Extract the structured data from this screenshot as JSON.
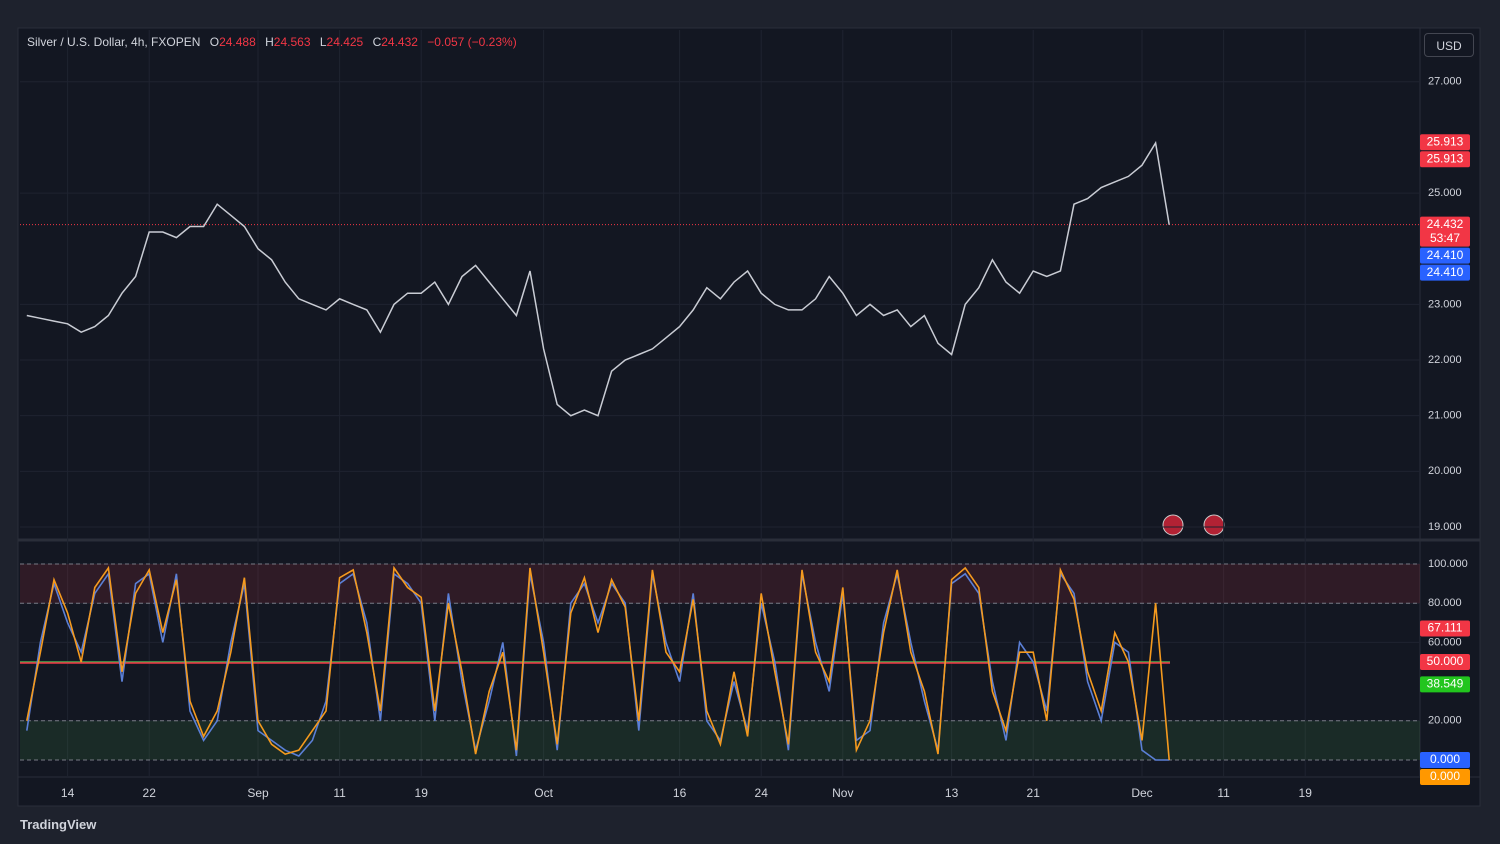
{
  "header": {
    "title": "Silver / U.S. Dollar, 4h, FXOPEN",
    "ohlc": [
      {
        "label": "O",
        "value": 24.488
      },
      {
        "label": "H",
        "value": 24.563
      },
      {
        "label": "L",
        "value": 24.425
      },
      {
        "label": "C",
        "value": 24.432
      }
    ],
    "change": "−0.057 (−0.23%)"
  },
  "currency": "USD",
  "brand": "TradingView",
  "chart_data": [
    {
      "type": "line",
      "categories": [
        null,
        null,
        null,
        "14",
        null,
        null,
        null,
        null,
        null,
        "22",
        null,
        null,
        null,
        null,
        null,
        null,
        null,
        "Sep",
        null,
        null,
        null,
        null,
        null,
        "11",
        null,
        null,
        null,
        null,
        null,
        "19",
        null,
        null,
        null,
        null,
        null,
        null,
        null,
        null,
        "Oct",
        null,
        null,
        null,
        null,
        null,
        null,
        null,
        null,
        null,
        "16",
        null,
        null,
        null,
        null,
        null,
        "24",
        null,
        null,
        null,
        null,
        null,
        "Nov",
        null,
        null,
        null,
        null,
        null,
        null,
        null,
        "13",
        null,
        null,
        null,
        null,
        null,
        "21",
        null,
        null,
        null,
        null,
        null,
        null,
        null,
        "Dec",
        null,
        null,
        null,
        null,
        null,
        "11",
        null,
        null,
        null,
        null,
        null,
        "19",
        null,
        null,
        null,
        null,
        null,
        null,
        null,
        null
      ],
      "values": [
        22.8,
        22.75,
        22.7,
        22.65,
        22.5,
        22.6,
        22.8,
        23.2,
        23.5,
        24.3,
        24.3,
        24.2,
        24.4,
        24.4,
        24.8,
        24.6,
        24.4,
        24.0,
        23.8,
        23.4,
        23.1,
        23.0,
        22.9,
        23.1,
        23.0,
        22.9,
        22.5,
        23.0,
        23.2,
        23.2,
        23.4,
        23.0,
        23.5,
        23.7,
        23.4,
        23.1,
        22.8,
        23.6,
        22.2,
        21.2,
        21.0,
        21.1,
        21.0,
        21.8,
        22.0,
        22.1,
        22.2,
        22.4,
        22.6,
        22.9,
        23.3,
        23.1,
        23.4,
        23.6,
        23.2,
        23.0,
        22.9,
        22.9,
        23.1,
        23.5,
        23.2,
        22.8,
        23.0,
        22.8,
        22.9,
        22.6,
        22.8,
        22.3,
        22.1,
        23.0,
        23.3,
        23.8,
        23.4,
        23.2,
        23.6,
        23.5,
        23.6,
        24.8,
        24.9,
        25.1,
        25.2,
        25.3,
        25.5,
        25.9,
        24.432,
        null,
        null,
        null,
        null,
        null,
        null,
        null,
        null,
        null,
        null,
        null,
        null,
        null,
        null,
        null,
        null,
        null,
        null
      ],
      "color": "#c9ccd4",
      "ylim": [
        18.82,
        27.93
      ],
      "yticks": [
        {
          "value": 19,
          "label": "19.000"
        },
        {
          "value": 20,
          "label": "20.000"
        },
        {
          "value": 21,
          "label": "21.000"
        },
        {
          "value": 22,
          "label": "22.000"
        },
        {
          "value": 23,
          "label": "23.000"
        },
        {
          "value": 25,
          "label": "25.000"
        },
        {
          "value": 27,
          "label": "27.000"
        }
      ],
      "price_labels": [
        {
          "value": 25.913,
          "label": "25.913",
          "color": "#f23645"
        },
        {
          "value": 25.913,
          "label": "25.913",
          "color": "#f23645"
        },
        {
          "value": 24.432,
          "label": "24.432",
          "sub": "53:47",
          "color": "#f23645"
        },
        {
          "value": 24.41,
          "label": "24.410",
          "color": "#2962ff"
        },
        {
          "value": 24.41,
          "label": "24.410",
          "color": "#2962ff"
        }
      ]
    },
    {
      "type": "line",
      "series": [
        {
          "color": "#5b7fd6",
          "values": [
            15,
            60,
            90,
            70,
            55,
            85,
            95,
            40,
            90,
            95,
            60,
            95,
            25,
            10,
            20,
            60,
            90,
            15,
            10,
            5,
            2,
            10,
            30,
            90,
            95,
            70,
            20,
            95,
            90,
            80,
            20,
            85,
            40,
            5,
            30,
            60,
            2,
            95,
            60,
            5,
            80,
            90,
            70,
            90,
            80,
            15,
            95,
            60,
            40,
            85,
            20,
            10,
            40,
            15,
            80,
            50,
            5,
            95,
            60,
            35,
            85,
            10,
            15,
            70,
            95,
            60,
            30,
            5,
            90,
            95,
            85,
            40,
            10,
            60,
            50,
            25,
            95,
            85,
            40,
            20,
            60,
            55,
            5,
            0,
            0,
            null,
            null,
            null,
            null,
            null,
            null,
            null,
            null,
            null,
            null,
            null,
            null,
            null,
            null,
            null,
            null,
            null,
            null
          ]
        },
        {
          "color": "#f59a1e",
          "values": [
            20,
            55,
            92,
            75,
            50,
            88,
            98,
            45,
            85,
            97,
            65,
            92,
            30,
            12,
            25,
            55,
            93,
            20,
            8,
            3,
            5,
            15,
            25,
            93,
            97,
            65,
            25,
            98,
            88,
            83,
            25,
            80,
            45,
            3,
            35,
            55,
            5,
            98,
            55,
            8,
            75,
            93,
            65,
            92,
            78,
            20,
            97,
            55,
            45,
            82,
            25,
            8,
            45,
            12,
            85,
            45,
            8,
            97,
            55,
            40,
            88,
            5,
            20,
            65,
            97,
            55,
            35,
            3,
            92,
            98,
            88,
            35,
            15,
            55,
            55,
            20,
            97,
            82,
            45,
            25,
            65,
            50,
            10,
            80,
            0,
            null,
            null,
            null,
            null,
            null,
            null,
            null,
            null,
            null,
            null,
            null,
            null,
            null,
            null,
            null,
            null,
            null,
            null
          ]
        }
      ],
      "ylim": [
        -8.7,
        109.7
      ],
      "yticks": [
        {
          "value": 20,
          "label": "20.000"
        },
        {
          "value": 60,
          "label": "60.000"
        },
        {
          "value": 80,
          "label": "80.000"
        },
        {
          "value": 100,
          "label": "100.000"
        }
      ],
      "bands": [
        {
          "from": 80,
          "to": 100,
          "color": "#f23645"
        },
        {
          "from": 0,
          "to": 20,
          "color": "#4caf50"
        }
      ],
      "levels": [
        100,
        80,
        20,
        0
      ],
      "midlines": [
        {
          "value": 50,
          "color": "#4caf50"
        },
        {
          "value": 50,
          "color": "#f23645"
        }
      ],
      "price_labels": [
        {
          "value": 67.111,
          "label": "67.111",
          "color": "#f23645"
        },
        {
          "value": 50,
          "label": "50.000",
          "color": "#f23645"
        },
        {
          "value": 38.549,
          "label": "38.549",
          "color": "#22c51e"
        },
        {
          "value": 0,
          "label": "0.000",
          "color": "#2962ff"
        },
        {
          "value": 0,
          "label": "0.000",
          "color": "#ff9800"
        }
      ]
    }
  ]
}
